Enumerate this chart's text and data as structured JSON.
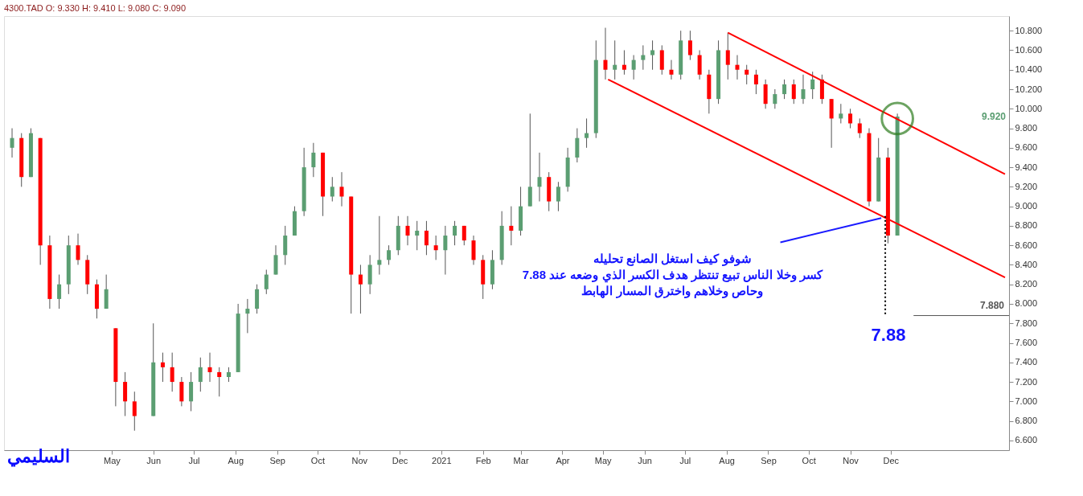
{
  "chart_data": {
    "type": "candlestick",
    "title": "4300.TAD  O: 9.330 H: 9.410 L: 9.080 C: 9.090",
    "x": [
      "2020-02-17",
      "2020-02-24",
      "2020-03-02",
      "2020-03-09",
      "2020-03-16",
      "2020-03-23",
      "2020-03-30",
      "2020-04-06",
      "2020-04-13",
      "2020-04-20",
      "2020-04-27",
      "2020-05-04",
      "2020-05-11",
      "2020-05-18",
      "2020-06-01",
      "2020-06-08",
      "2020-06-15",
      "2020-06-22",
      "2020-06-29",
      "2020-07-06",
      "2020-07-13",
      "2020-07-20",
      "2020-07-27",
      "2020-08-03",
      "2020-08-10",
      "2020-08-17",
      "2020-08-24",
      "2020-08-31",
      "2020-09-07",
      "2020-09-14",
      "2020-09-21",
      "2020-09-28",
      "2020-10-05",
      "2020-10-12",
      "2020-10-19",
      "2020-10-26",
      "2020-11-02",
      "2020-11-09",
      "2020-11-16",
      "2020-11-23",
      "2020-11-30",
      "2020-12-07",
      "2020-12-14",
      "2020-12-21",
      "2020-12-28",
      "2021-01-04",
      "2021-01-11",
      "2021-01-18",
      "2021-01-25",
      "2021-02-01",
      "2021-02-08",
      "2021-02-15",
      "2021-02-22",
      "2021-03-01",
      "2021-03-08",
      "2021-03-15",
      "2021-03-22",
      "2021-03-29",
      "2021-04-05",
      "2021-04-12",
      "2021-04-19",
      "2021-04-26",
      "2021-05-03",
      "2021-05-10",
      "2021-05-17",
      "2021-05-24",
      "2021-05-31",
      "2021-06-07",
      "2021-06-14",
      "2021-06-21",
      "2021-06-28",
      "2021-07-05",
      "2021-07-12",
      "2021-07-19",
      "2021-07-26",
      "2021-08-02",
      "2021-08-09",
      "2021-08-16",
      "2021-08-23",
      "2021-08-30",
      "2021-09-06",
      "2021-09-13",
      "2021-09-20",
      "2021-09-27",
      "2021-10-04",
      "2021-10-11",
      "2021-10-18",
      "2021-10-25",
      "2021-11-01",
      "2021-11-08",
      "2021-11-15",
      "2021-11-22",
      "2021-11-29",
      "2021-12-06"
    ],
    "ohlc": [
      [
        9.6,
        9.8,
        9.5,
        9.7
      ],
      [
        9.7,
        9.75,
        9.2,
        9.3
      ],
      [
        9.3,
        9.8,
        9.3,
        9.75
      ],
      [
        9.7,
        9.7,
        8.4,
        8.6
      ],
      [
        8.6,
        8.7,
        7.95,
        8.05
      ],
      [
        8.05,
        8.3,
        7.95,
        8.2
      ],
      [
        8.2,
        8.7,
        8.1,
        8.6
      ],
      [
        8.6,
        8.72,
        8.4,
        8.45
      ],
      [
        8.45,
        8.5,
        8.1,
        8.2
      ],
      [
        8.2,
        8.25,
        7.85,
        7.95
      ],
      [
        7.95,
        8.3,
        7.95,
        8.15
      ],
      [
        7.75,
        7.75,
        6.95,
        7.2
      ],
      [
        7.2,
        7.3,
        6.85,
        7.0
      ],
      [
        7.0,
        7.1,
        6.7,
        6.85
      ],
      [
        6.85,
        7.8,
        6.85,
        7.4
      ],
      [
        7.4,
        7.5,
        7.2,
        7.35
      ],
      [
        7.35,
        7.5,
        7.1,
        7.2
      ],
      [
        7.2,
        7.25,
        6.95,
        7.0
      ],
      [
        7.0,
        7.3,
        6.9,
        7.2
      ],
      [
        7.2,
        7.45,
        7.1,
        7.35
      ],
      [
        7.35,
        7.5,
        7.2,
        7.3
      ],
      [
        7.3,
        7.35,
        7.05,
        7.25
      ],
      [
        7.25,
        7.35,
        7.2,
        7.3
      ],
      [
        7.3,
        8.0,
        7.3,
        7.9
      ],
      [
        7.9,
        8.05,
        7.7,
        7.95
      ],
      [
        7.95,
        8.2,
        7.9,
        8.15
      ],
      [
        8.15,
        8.35,
        8.1,
        8.3
      ],
      [
        8.3,
        8.6,
        8.3,
        8.5
      ],
      [
        8.5,
        8.8,
        8.4,
        8.7
      ],
      [
        8.7,
        9.0,
        8.7,
        8.95
      ],
      [
        8.95,
        9.6,
        8.9,
        9.4
      ],
      [
        9.4,
        9.65,
        9.3,
        9.55
      ],
      [
        9.55,
        9.55,
        8.9,
        9.1
      ],
      [
        9.1,
        9.3,
        9.05,
        9.2
      ],
      [
        9.2,
        9.35,
        9.0,
        9.1
      ],
      [
        9.1,
        9.1,
        7.9,
        8.3
      ],
      [
        8.3,
        8.4,
        7.9,
        8.2
      ],
      [
        8.2,
        8.5,
        8.1,
        8.4
      ],
      [
        8.4,
        8.9,
        8.3,
        8.45
      ],
      [
        8.45,
        8.6,
        8.4,
        8.55
      ],
      [
        8.55,
        8.9,
        8.5,
        8.8
      ],
      [
        8.8,
        8.9,
        8.6,
        8.7
      ],
      [
        8.7,
        8.85,
        8.55,
        8.75
      ],
      [
        8.75,
        8.85,
        8.5,
        8.6
      ],
      [
        8.6,
        8.7,
        8.45,
        8.55
      ],
      [
        8.55,
        8.8,
        8.3,
        8.7
      ],
      [
        8.7,
        8.85,
        8.6,
        8.8
      ],
      [
        8.8,
        8.8,
        8.6,
        8.65
      ],
      [
        8.65,
        8.7,
        8.4,
        8.45
      ],
      [
        8.45,
        8.5,
        8.05,
        8.2
      ],
      [
        8.2,
        8.55,
        8.15,
        8.45
      ],
      [
        8.45,
        8.95,
        8.4,
        8.8
      ],
      [
        8.8,
        9.0,
        8.6,
        8.75
      ],
      [
        8.75,
        9.2,
        8.7,
        9.0
      ],
      [
        9.0,
        9.95,
        9.0,
        9.2
      ],
      [
        9.2,
        9.55,
        9.05,
        9.3
      ],
      [
        9.3,
        9.35,
        8.95,
        9.05
      ],
      [
        9.05,
        9.25,
        8.95,
        9.2
      ],
      [
        9.2,
        9.6,
        9.15,
        9.5
      ],
      [
        9.5,
        9.8,
        9.45,
        9.7
      ],
      [
        9.7,
        9.9,
        9.6,
        9.75
      ],
      [
        9.75,
        10.7,
        9.7,
        10.5
      ],
      [
        10.5,
        10.83,
        10.3,
        10.4
      ],
      [
        10.4,
        10.7,
        10.3,
        10.45
      ],
      [
        10.45,
        10.6,
        10.35,
        10.4
      ],
      [
        10.4,
        10.55,
        10.3,
        10.5
      ],
      [
        10.5,
        10.65,
        10.4,
        10.55
      ],
      [
        10.55,
        10.7,
        10.4,
        10.6
      ],
      [
        10.6,
        10.65,
        10.35,
        10.4
      ],
      [
        10.4,
        10.5,
        10.3,
        10.35
      ],
      [
        10.35,
        10.8,
        10.3,
        10.7
      ],
      [
        10.7,
        10.8,
        10.5,
        10.55
      ],
      [
        10.55,
        10.6,
        10.3,
        10.35
      ],
      [
        10.35,
        10.4,
        9.95,
        10.1
      ],
      [
        10.1,
        10.7,
        10.05,
        10.6
      ],
      [
        10.6,
        10.78,
        10.3,
        10.45
      ],
      [
        10.45,
        10.55,
        10.3,
        10.4
      ],
      [
        10.4,
        10.45,
        10.25,
        10.35
      ],
      [
        10.35,
        10.4,
        10.15,
        10.25
      ],
      [
        10.25,
        10.3,
        10.0,
        10.05
      ],
      [
        10.05,
        10.2,
        10.0,
        10.15
      ],
      [
        10.15,
        10.3,
        10.1,
        10.25
      ],
      [
        10.25,
        10.3,
        10.05,
        10.1
      ],
      [
        10.1,
        10.35,
        10.05,
        10.2
      ],
      [
        10.2,
        10.38,
        10.1,
        10.3
      ],
      [
        10.3,
        10.35,
        10.05,
        10.1
      ],
      [
        10.1,
        10.1,
        9.6,
        9.9
      ],
      [
        9.9,
        10.05,
        9.85,
        9.95
      ],
      [
        9.95,
        10.0,
        9.8,
        9.85
      ],
      [
        9.85,
        9.9,
        9.7,
        9.75
      ],
      [
        9.75,
        9.8,
        9.0,
        9.05
      ],
      [
        9.05,
        9.7,
        9.05,
        9.5
      ],
      [
        9.5,
        9.6,
        8.62,
        8.7
      ],
      [
        8.7,
        9.95,
        8.7,
        9.92
      ]
    ],
    "colors": [
      "#5b9e72",
      "#ff0000",
      "#5b9e72",
      "#ff0000",
      "#ff0000",
      "#5b9e72",
      "#5b9e72",
      "#ff0000",
      "#ff0000",
      "#ff0000",
      "#5b9e72",
      "#ff0000",
      "#ff0000",
      "#ff0000",
      "#5b9e72",
      "#ff0000",
      "#ff0000",
      "#ff0000",
      "#5b9e72",
      "#5b9e72",
      "#ff0000",
      "#ff0000",
      "#5b9e72",
      "#5b9e72",
      "#5b9e72",
      "#5b9e72",
      "#5b9e72",
      "#5b9e72",
      "#5b9e72",
      "#5b9e72",
      "#5b9e72",
      "#5b9e72",
      "#ff0000",
      "#5b9e72",
      "#ff0000",
      "#ff0000",
      "#ff0000",
      "#5b9e72",
      "#5b9e72",
      "#5b9e72",
      "#5b9e72",
      "#ff0000",
      "#5b9e72",
      "#ff0000",
      "#ff0000",
      "#5b9e72",
      "#5b9e72",
      "#ff0000",
      "#ff0000",
      "#ff0000",
      "#5b9e72",
      "#5b9e72",
      "#ff0000",
      "#5b9e72",
      "#5b9e72",
      "#5b9e72",
      "#ff0000",
      "#5b9e72",
      "#5b9e72",
      "#5b9e72",
      "#5b9e72",
      "#5b9e72",
      "#ff0000",
      "#5b9e72",
      "#ff0000",
      "#5b9e72",
      "#5b9e72",
      "#5b9e72",
      "#ff0000",
      "#ff0000",
      "#5b9e72",
      "#ff0000",
      "#ff0000",
      "#ff0000",
      "#5b9e72",
      "#ff0000",
      "#ff0000",
      "#ff0000",
      "#ff0000",
      "#ff0000",
      "#5b9e72",
      "#5b9e72",
      "#ff0000",
      "#5b9e72",
      "#5b9e72",
      "#ff0000",
      "#ff0000",
      "#5b9e72",
      "#ff0000",
      "#ff0000",
      "#ff0000",
      "#5b9e72",
      "#ff0000",
      "#5b9e72"
    ],
    "series": [
      {
        "type": "line",
        "color": "#ff0000",
        "line_style": "solid",
        "x": [
          "2021-08-02",
          "2022-02-24"
        ],
        "values": [
          10.78,
          9.33
        ]
      },
      {
        "type": "line",
        "color": "#ff0000",
        "line_style": "solid",
        "x": [
          "2021-05-05",
          "2022-02-24"
        ],
        "values": [
          10.3,
          8.27
        ]
      },
      {
        "type": "line",
        "color": "#000000",
        "line_style": "dotted",
        "x": [
          "2021-11-27",
          "2021-11-27"
        ],
        "values": [
          8.9,
          7.88
        ]
      },
      {
        "type": "line",
        "color": "#1a1aff",
        "line_style": "solid",
        "x": [
          "2021-09-10",
          "2021-11-24"
        ],
        "values": [
          8.63,
          8.88
        ]
      },
      {
        "type": "scatter",
        "color": "#2e7d1f",
        "marker": "circle",
        "x": [
          "2021-12-06"
        ],
        "values": [
          9.9
        ]
      }
    ],
    "ref_lines": [
      {
        "axis": "y",
        "value": 7.88,
        "label": "7.880",
        "color": "#555555"
      }
    ],
    "annotations": [
      "السليمي",
      "شوفو كيف استغل الصانع تحليله\nكسر وخلا الناس تبيع تنتظر هدف الكسر الذي وضعه عند 7.88\nوحاص وخلاهم واخترق المسار الهابط",
      "7.88",
      "9.920"
    ],
    "xlim": [
      "2020-02-14",
      "2022-02-24"
    ],
    "xticks": [
      {
        "value": "2020-05-01",
        "label": "May"
      },
      {
        "value": "2020-06-01",
        "label": "Jun"
      },
      {
        "value": "2020-07-01",
        "label": "Jul"
      },
      {
        "value": "2020-08-01",
        "label": "Aug"
      },
      {
        "value": "2020-09-01",
        "label": "Sep"
      },
      {
        "value": "2020-10-01",
        "label": "Oct"
      },
      {
        "value": "2020-11-01",
        "label": "Nov"
      },
      {
        "value": "2020-12-01",
        "label": "Dec"
      },
      {
        "value": "2021-01-01",
        "label": "2021"
      },
      {
        "value": "2021-02-01",
        "label": "Feb"
      },
      {
        "value": "2021-03-01",
        "label": "Mar"
      },
      {
        "value": "2021-04-01",
        "label": "Apr"
      },
      {
        "value": "2021-05-01",
        "label": "May"
      },
      {
        "value": "2021-06-01",
        "label": "Jun"
      },
      {
        "value": "2021-07-01",
        "label": "Jul"
      },
      {
        "value": "2021-08-01",
        "label": "Aug"
      },
      {
        "value": "2021-09-01",
        "label": "Sep"
      },
      {
        "value": "2021-10-01",
        "label": "Oct"
      },
      {
        "value": "2021-11-01",
        "label": "Nov"
      },
      {
        "value": "2021-12-01",
        "label": "Dec"
      }
    ],
    "ylim": [
      6.5,
      10.95
    ],
    "yticks": [
      {
        "value": 6.6,
        "label": "6.600"
      },
      {
        "value": 6.8,
        "label": "6.800"
      },
      {
        "value": 7.0,
        "label": "7.000"
      },
      {
        "value": 7.2,
        "label": "7.200"
      },
      {
        "value": 7.4,
        "label": "7.400"
      },
      {
        "value": 7.6,
        "label": "7.600"
      },
      {
        "value": 7.8,
        "label": "7.800"
      },
      {
        "value": 8.0,
        "label": "8.000"
      },
      {
        "value": 8.2,
        "label": "8.200"
      },
      {
        "value": 8.4,
        "label": "8.400"
      },
      {
        "value": 8.6,
        "label": "8.600"
      },
      {
        "value": 8.8,
        "label": "8.800"
      },
      {
        "value": 9.0,
        "label": "9.000"
      },
      {
        "value": 9.2,
        "label": "9.200"
      },
      {
        "value": 9.4,
        "label": "9.400"
      },
      {
        "value": 9.6,
        "label": "9.600"
      },
      {
        "value": 9.8,
        "label": "9.800"
      },
      {
        "value": 10.0,
        "label": "10.000"
      },
      {
        "value": 10.2,
        "label": "10.200"
      },
      {
        "value": 10.4,
        "label": "10.400"
      },
      {
        "value": 10.6,
        "label": "10.600"
      },
      {
        "value": 10.8,
        "label": "10.800"
      }
    ],
    "grid": false
  }
}
